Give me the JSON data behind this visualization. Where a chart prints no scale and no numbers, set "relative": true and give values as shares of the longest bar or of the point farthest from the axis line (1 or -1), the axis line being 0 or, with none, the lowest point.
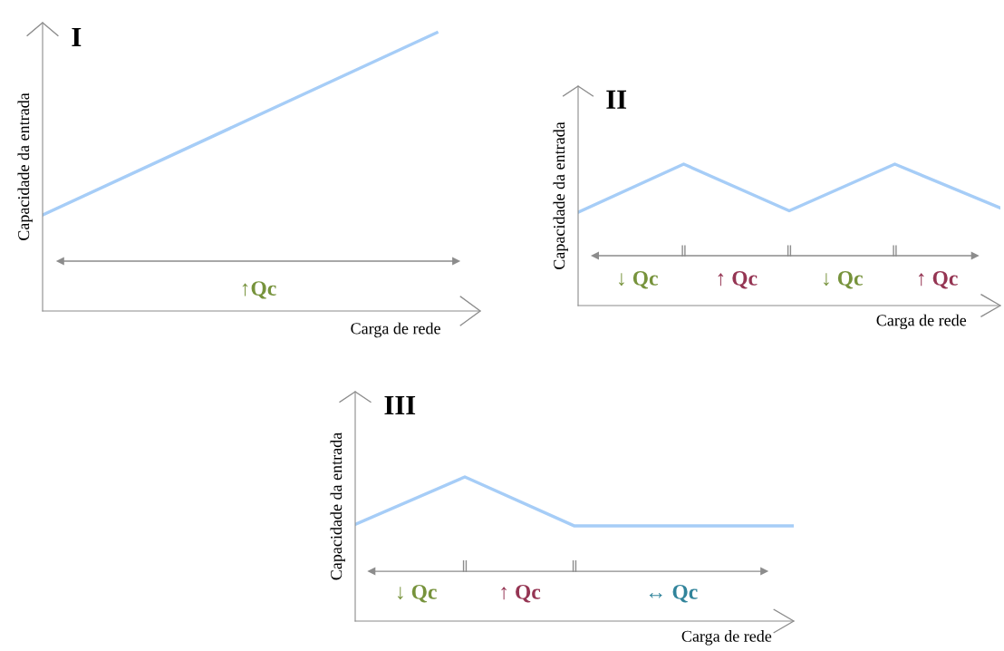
{
  "chart_data": [
    {
      "type": "line",
      "relative": true,
      "title": "I",
      "xlabel": "Carga de rede",
      "ylabel": "Capacidade da entrada",
      "categories": [
        null,
        null
      ],
      "grid": false,
      "legend": false,
      "marker": "none",
      "line_style": "solid",
      "series": [
        {
          "color": "#a6cdf7",
          "values": [
            0.345,
            1
          ]
        }
      ],
      "annotations": [
        "↑Qc"
      ]
    },
    {
      "type": "line",
      "relative": true,
      "title": "II",
      "xlabel": "Carga de rede",
      "ylabel": "Capacidade da entrada",
      "categories": [
        null,
        null,
        null,
        null,
        null
      ],
      "grid": false,
      "legend": false,
      "marker": "none",
      "line_style": "solid",
      "series": [
        {
          "color": "#a6cdf7",
          "values": [
            0.66,
            1,
            0.67,
            1,
            0.69
          ]
        }
      ],
      "annotations": [
        "↓ Qc",
        "↑ Qc",
        "↓ Qc",
        "↑ Qc"
      ]
    },
    {
      "type": "line",
      "relative": true,
      "title": "III",
      "xlabel": "Carga de rede",
      "ylabel": "Capacidade da entrada",
      "categories": [
        null,
        null,
        null,
        null,
        null
      ],
      "grid": false,
      "legend": false,
      "marker": "none",
      "line_style": "solid",
      "series": [
        {
          "color": "#a6cdf7",
          "values": [
            0.67,
            1,
            0.66,
            0.66,
            0.66
          ]
        }
      ],
      "annotations": [
        "↓ Qc",
        "↑ Qc",
        "↔ Qc"
      ]
    }
  ]
}
